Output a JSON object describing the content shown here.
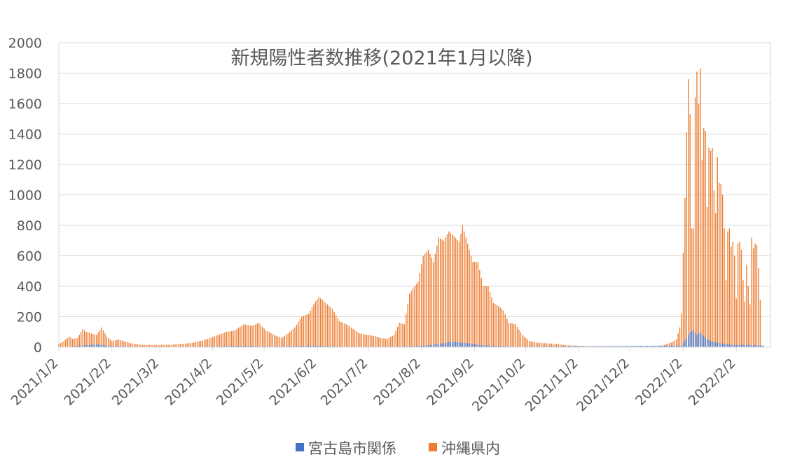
{
  "chart_data": {
    "type": "bar",
    "title": "新規陽性者数推移(2021年1月以降)",
    "xlabel": "",
    "ylabel": "",
    "ylim": [
      0,
      2000
    ],
    "y_ticks": [
      0,
      200,
      400,
      600,
      800,
      1000,
      1200,
      1400,
      1600,
      1800,
      2000
    ],
    "x_range": [
      "2021-01-02",
      "2022-02-22"
    ],
    "x_tick_labels": [
      "2021/1/2",
      "2021/2/2",
      "2021/3/2",
      "2021/4/2",
      "2021/5/2",
      "2021/6/2",
      "2021/7/2",
      "2021/8/2",
      "2021/9/2",
      "2021/10/2",
      "2021/11/2",
      "2021/12/2",
      "2022/1/2",
      "2022/2/2"
    ],
    "x_tick_dates": [
      "2021-01-02",
      "2021-02-02",
      "2021-03-02",
      "2021-04-02",
      "2021-05-02",
      "2021-06-02",
      "2021-07-02",
      "2021-08-02",
      "2021-09-02",
      "2021-10-02",
      "2021-11-02",
      "2021-12-02",
      "2022-01-02",
      "2022-02-02"
    ],
    "grid": true,
    "legend_position": "bottom",
    "series": [
      {
        "name": "宮古島市関係",
        "color": "#4472C4",
        "points": [
          [
            "2021-01-10",
            5
          ],
          [
            "2021-01-20",
            15
          ],
          [
            "2021-01-25",
            18
          ],
          [
            "2021-02-01",
            8
          ],
          [
            "2021-02-15",
            2
          ],
          [
            "2021-03-15",
            2
          ],
          [
            "2021-04-10",
            5
          ],
          [
            "2021-04-20",
            8
          ],
          [
            "2021-05-01",
            5
          ],
          [
            "2021-05-20",
            5
          ],
          [
            "2021-05-28",
            10
          ],
          [
            "2021-06-02",
            8
          ],
          [
            "2021-06-15",
            3
          ],
          [
            "2021-07-10",
            3
          ],
          [
            "2021-07-25",
            5
          ],
          [
            "2021-08-01",
            8
          ],
          [
            "2021-08-08",
            15
          ],
          [
            "2021-08-15",
            25
          ],
          [
            "2021-08-20",
            38
          ],
          [
            "2021-08-25",
            30
          ],
          [
            "2021-08-30",
            25
          ],
          [
            "2021-09-05",
            15
          ],
          [
            "2021-09-15",
            8
          ],
          [
            "2021-09-25",
            3
          ],
          [
            "2022-01-01",
            10
          ],
          [
            "2022-01-04",
            60
          ],
          [
            "2022-01-06",
            100
          ],
          [
            "2022-01-08",
            110
          ],
          [
            "2022-01-10",
            80
          ],
          [
            "2022-01-12",
            100
          ],
          [
            "2022-01-15",
            60
          ],
          [
            "2022-01-18",
            40
          ],
          [
            "2022-01-22",
            30
          ],
          [
            "2022-01-26",
            20
          ],
          [
            "2022-02-01",
            15
          ],
          [
            "2022-02-10",
            15
          ],
          [
            "2022-02-18",
            10
          ]
        ]
      },
      {
        "name": "沖縄県内",
        "color": "#ED7D31",
        "points": [
          [
            "2021-01-02",
            20
          ],
          [
            "2021-01-05",
            40
          ],
          [
            "2021-01-08",
            70
          ],
          [
            "2021-01-10",
            55
          ],
          [
            "2021-01-13",
            60
          ],
          [
            "2021-01-16",
            120
          ],
          [
            "2021-01-18",
            100
          ],
          [
            "2021-01-21",
            90
          ],
          [
            "2021-01-24",
            80
          ],
          [
            "2021-01-27",
            130
          ],
          [
            "2021-01-30",
            70
          ],
          [
            "2021-02-02",
            40
          ],
          [
            "2021-02-06",
            50
          ],
          [
            "2021-02-10",
            35
          ],
          [
            "2021-02-15",
            20
          ],
          [
            "2021-02-20",
            15
          ],
          [
            "2021-02-28",
            15
          ],
          [
            "2021-03-08",
            15
          ],
          [
            "2021-03-15",
            20
          ],
          [
            "2021-03-22",
            30
          ],
          [
            "2021-03-29",
            50
          ],
          [
            "2021-04-05",
            80
          ],
          [
            "2021-04-10",
            100
          ],
          [
            "2021-04-15",
            110
          ],
          [
            "2021-04-20",
            150
          ],
          [
            "2021-04-25",
            140
          ],
          [
            "2021-04-29",
            160
          ],
          [
            "2021-05-03",
            110
          ],
          [
            "2021-05-08",
            80
          ],
          [
            "2021-05-12",
            60
          ],
          [
            "2021-05-16",
            90
          ],
          [
            "2021-05-20",
            130
          ],
          [
            "2021-05-24",
            200
          ],
          [
            "2021-05-28",
            220
          ],
          [
            "2021-06-01",
            300
          ],
          [
            "2021-06-03",
            330
          ],
          [
            "2021-06-07",
            290
          ],
          [
            "2021-06-11",
            250
          ],
          [
            "2021-06-15",
            170
          ],
          [
            "2021-06-19",
            150
          ],
          [
            "2021-06-23",
            120
          ],
          [
            "2021-06-27",
            90
          ],
          [
            "2021-07-01",
            80
          ],
          [
            "2021-07-05",
            75
          ],
          [
            "2021-07-09",
            60
          ],
          [
            "2021-07-13",
            55
          ],
          [
            "2021-07-17",
            80
          ],
          [
            "2021-07-20",
            160
          ],
          [
            "2021-07-23",
            150
          ],
          [
            "2021-07-26",
            350
          ],
          [
            "2021-07-29",
            400
          ],
          [
            "2021-07-31",
            430
          ],
          [
            "2021-08-03",
            600
          ],
          [
            "2021-08-06",
            640
          ],
          [
            "2021-08-09",
            560
          ],
          [
            "2021-08-12",
            720
          ],
          [
            "2021-08-15",
            700
          ],
          [
            "2021-08-18",
            760
          ],
          [
            "2021-08-21",
            730
          ],
          [
            "2021-08-24",
            690
          ],
          [
            "2021-08-26",
            800
          ],
          [
            "2021-08-29",
            680
          ],
          [
            "2021-09-01",
            560
          ],
          [
            "2021-09-04",
            560
          ],
          [
            "2021-09-07",
            400
          ],
          [
            "2021-09-10",
            400
          ],
          [
            "2021-09-13",
            290
          ],
          [
            "2021-09-16",
            270
          ],
          [
            "2021-09-19",
            240
          ],
          [
            "2021-09-22",
            160
          ],
          [
            "2021-09-26",
            150
          ],
          [
            "2021-09-30",
            80
          ],
          [
            "2021-10-04",
            40
          ],
          [
            "2021-10-08",
            30
          ],
          [
            "2021-10-14",
            25
          ],
          [
            "2021-10-20",
            20
          ],
          [
            "2021-10-26",
            12
          ],
          [
            "2021-11-01",
            10
          ],
          [
            "2021-11-08",
            5
          ],
          [
            "2021-11-20",
            3
          ],
          [
            "2021-12-01",
            2
          ],
          [
            "2021-12-10",
            3
          ],
          [
            "2021-12-18",
            5
          ],
          [
            "2021-12-22",
            15
          ],
          [
            "2021-12-26",
            30
          ],
          [
            "2021-12-29",
            50
          ],
          [
            "2021-12-31",
            130
          ],
          [
            "2022-01-01",
            220
          ],
          [
            "2022-01-02",
            620
          ],
          [
            "2022-01-03",
            980
          ],
          [
            "2022-01-04",
            1410
          ],
          [
            "2022-01-05",
            1760
          ],
          [
            "2022-01-06",
            1530
          ],
          [
            "2022-01-07",
            780
          ],
          [
            "2022-01-08",
            780
          ],
          [
            "2022-01-09",
            1640
          ],
          [
            "2022-01-10",
            1810
          ],
          [
            "2022-01-11",
            1600
          ],
          [
            "2022-01-12",
            1830
          ],
          [
            "2022-01-13",
            1230
          ],
          [
            "2022-01-14",
            1440
          ],
          [
            "2022-01-15",
            1420
          ],
          [
            "2022-01-16",
            920
          ],
          [
            "2022-01-17",
            1310
          ],
          [
            "2022-01-18",
            1290
          ],
          [
            "2022-01-19",
            1310
          ],
          [
            "2022-01-20",
            1030
          ],
          [
            "2022-01-21",
            880
          ],
          [
            "2022-01-22",
            1250
          ],
          [
            "2022-01-23",
            1080
          ],
          [
            "2022-01-24",
            1070
          ],
          [
            "2022-01-25",
            1000
          ],
          [
            "2022-01-26",
            780
          ],
          [
            "2022-01-27",
            440
          ],
          [
            "2022-01-28",
            760
          ],
          [
            "2022-01-29",
            780
          ],
          [
            "2022-01-30",
            660
          ],
          [
            "2022-01-31",
            690
          ],
          [
            "2022-02-01",
            600
          ],
          [
            "2022-02-02",
            320
          ],
          [
            "2022-02-03",
            680
          ],
          [
            "2022-02-04",
            690
          ],
          [
            "2022-02-05",
            640
          ],
          [
            "2022-02-06",
            440
          ],
          [
            "2022-02-07",
            300
          ],
          [
            "2022-02-08",
            540
          ],
          [
            "2022-02-09",
            400
          ],
          [
            "2022-02-10",
            280
          ],
          [
            "2022-02-11",
            720
          ],
          [
            "2022-02-12",
            650
          ],
          [
            "2022-02-13",
            680
          ],
          [
            "2022-02-14",
            670
          ],
          [
            "2022-02-15",
            520
          ],
          [
            "2022-02-16",
            310
          ]
        ]
      }
    ]
  }
}
